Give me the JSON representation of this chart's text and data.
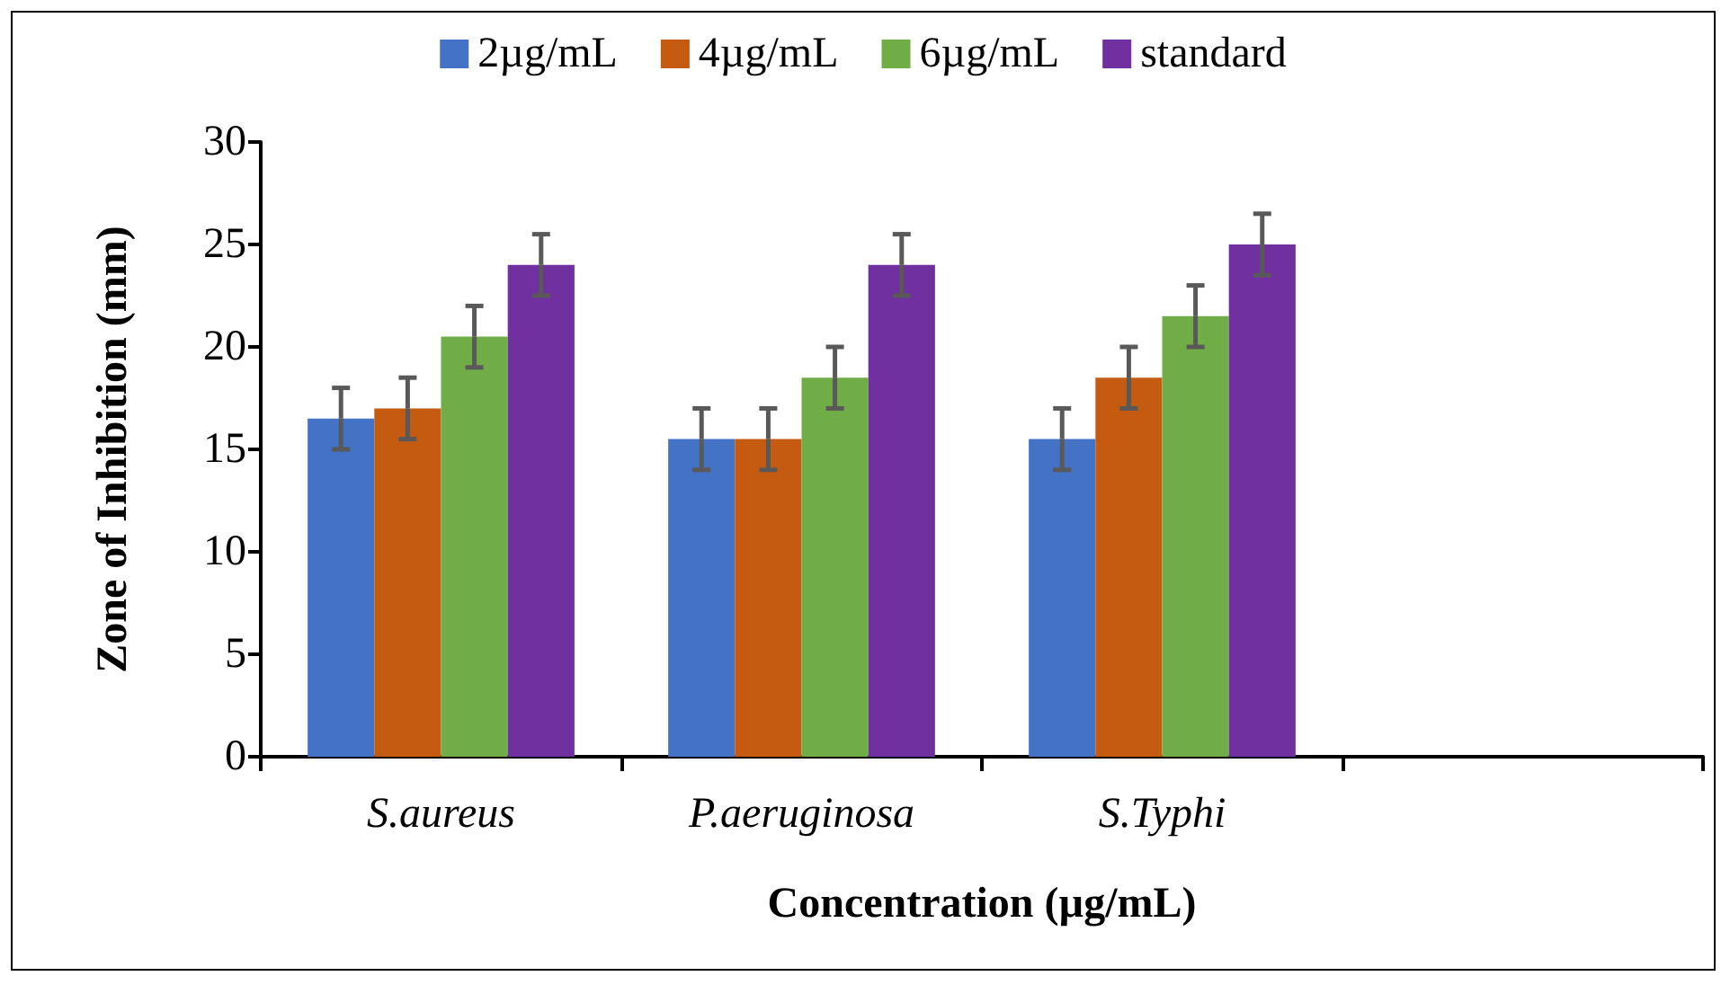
{
  "chart_data": {
    "type": "bar",
    "xlabel": "Concentration (µg/mL)",
    "ylabel": "Zone of Inhibition (mm)",
    "categories": [
      "S.aureus",
      "P.aeruginosa",
      "S.Typhi",
      null
    ],
    "series": [
      {
        "name": "2µg/mL",
        "color": "#4472c4",
        "values": [
          16.5,
          15.5,
          15.5,
          null
        ],
        "errors": [
          1.5,
          1.5,
          1.5,
          null
        ]
      },
      {
        "name": "4µg/mL",
        "color": "#c55a11",
        "values": [
          17,
          15.5,
          18.5,
          null
        ],
        "errors": [
          1.5,
          1.5,
          1.5,
          null
        ]
      },
      {
        "name": "6µg/mL",
        "color": "#70ad47",
        "values": [
          20.5,
          18.5,
          21.5,
          null
        ],
        "errors": [
          1.5,
          1.5,
          1.5,
          null
        ]
      },
      {
        "name": "standard",
        "color": "#7030a0",
        "values": [
          24,
          24,
          25,
          null
        ],
        "errors": [
          1.5,
          1.5,
          1.5,
          null
        ]
      }
    ],
    "ylim": [
      0,
      30
    ],
    "yticks": [
      0,
      5,
      10,
      15,
      20,
      25,
      30
    ],
    "grid": false,
    "legend": "top"
  }
}
